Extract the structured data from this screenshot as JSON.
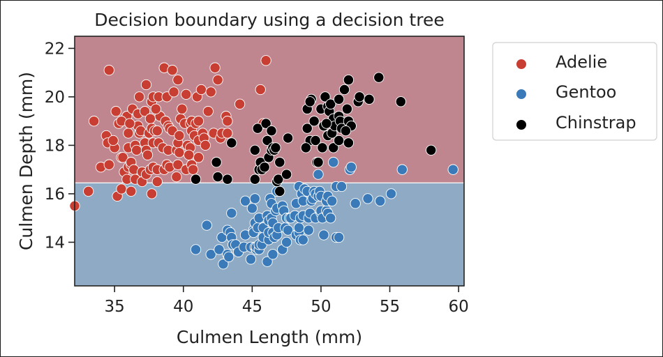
{
  "chart_data": {
    "type": "scatter",
    "title": "Decision boundary using a decision tree",
    "xlabel": "Culmen Length (mm)",
    "ylabel": "Culmen Depth (mm)",
    "xlim": [
      32.1,
      60.4
    ],
    "ylim": [
      12.2,
      22.5
    ],
    "x_ticks": [
      35,
      40,
      45,
      50,
      55,
      60
    ],
    "y_ticks": [
      14,
      16,
      18,
      20,
      22
    ],
    "grid": false,
    "legend_position": "outside-right",
    "decision_regions": [
      {
        "label": "Adelie",
        "y_min": 16.45,
        "y_max": 22.5,
        "color": "#c0868f"
      },
      {
        "label": "Gentoo",
        "y_min": 12.2,
        "y_max": 16.45,
        "color": "#8eaac4"
      }
    ],
    "series": [
      {
        "name": "Adelie",
        "color": "#c83e32",
        "points": [
          [
            32.1,
            15.5
          ],
          [
            33.1,
            16.1
          ],
          [
            33.5,
            19.0
          ],
          [
            34.0,
            17.1
          ],
          [
            34.4,
            18.4
          ],
          [
            34.5,
            18.1
          ],
          [
            34.6,
            21.1
          ],
          [
            34.6,
            17.2
          ],
          [
            35.0,
            17.9
          ],
          [
            35.1,
            19.4
          ],
          [
            35.2,
            15.9
          ],
          [
            35.3,
            18.9
          ],
          [
            35.5,
            16.2
          ],
          [
            35.5,
            17.5
          ],
          [
            35.6,
            17.5
          ],
          [
            35.7,
            16.9
          ],
          [
            35.9,
            16.6
          ],
          [
            35.9,
            19.2
          ],
          [
            36.0,
            17.1
          ],
          [
            36.0,
            17.9
          ],
          [
            36.0,
            18.5
          ],
          [
            36.2,
            16.1
          ],
          [
            36.2,
            17.2
          ],
          [
            36.2,
            17.3
          ],
          [
            36.3,
            19.5
          ],
          [
            36.4,
            17.0
          ],
          [
            36.5,
            16.6
          ],
          [
            36.5,
            18.0
          ],
          [
            36.6,
            17.8
          ],
          [
            36.7,
            18.8
          ],
          [
            36.7,
            19.3
          ],
          [
            36.8,
            18.5
          ],
          [
            36.9,
            18.6
          ],
          [
            37.0,
            16.5
          ],
          [
            37.0,
            16.9
          ],
          [
            37.2,
            18.1
          ],
          [
            37.2,
            19.4
          ],
          [
            37.3,
            16.8
          ],
          [
            37.3,
            17.8
          ],
          [
            37.3,
            20.5
          ],
          [
            37.5,
            18.5
          ],
          [
            37.6,
            17.0
          ],
          [
            37.6,
            19.1
          ],
          [
            37.7,
            16.0
          ],
          [
            37.7,
            18.7
          ],
          [
            37.7,
            19.8
          ],
          [
            37.8,
            17.1
          ],
          [
            37.8,
            18.1
          ],
          [
            37.8,
            20.0
          ],
          [
            37.9,
            18.6
          ],
          [
            38.1,
            16.5
          ],
          [
            38.1,
            17.0
          ],
          [
            38.1,
            18.6
          ],
          [
            38.2,
            18.1
          ],
          [
            38.2,
            20.0
          ],
          [
            38.3,
            19.2
          ],
          [
            38.5,
            17.9
          ],
          [
            38.6,
            17.0
          ],
          [
            38.6,
            21.2
          ],
          [
            38.7,
            19.0
          ],
          [
            38.8,
            17.2
          ],
          [
            38.8,
            20.0
          ],
          [
            38.9,
            17.8
          ],
          [
            38.9,
            18.8
          ],
          [
            39.0,
            17.1
          ],
          [
            39.0,
            18.7
          ],
          [
            39.2,
            18.6
          ],
          [
            39.2,
            21.1
          ],
          [
            39.5,
            16.7
          ],
          [
            39.5,
            17.8
          ],
          [
            39.6,
            17.2
          ],
          [
            39.6,
            18.1
          ],
          [
            39.6,
            20.7
          ],
          [
            39.7,
            17.7
          ],
          [
            39.7,
            18.4
          ],
          [
            39.8,
            19.1
          ],
          [
            40.1,
            18.9
          ],
          [
            40.2,
            17.0
          ],
          [
            40.2,
            20.1
          ],
          [
            40.3,
            18.0
          ],
          [
            40.5,
            17.9
          ],
          [
            40.5,
            18.9
          ],
          [
            40.6,
            17.2
          ],
          [
            40.6,
            18.6
          ],
          [
            40.6,
            19.0
          ],
          [
            40.7,
            17.0
          ],
          [
            40.8,
            18.4
          ],
          [
            40.9,
            16.6
          ],
          [
            40.9,
            18.9
          ],
          [
            41.0,
            20.0
          ],
          [
            41.1,
            17.5
          ],
          [
            41.1,
            18.2
          ],
          [
            41.1,
            19.0
          ],
          [
            41.3,
            20.3
          ],
          [
            41.4,
            18.5
          ],
          [
            41.5,
            18.3
          ],
          [
            41.6,
            18.0
          ],
          [
            41.8,
            19.4
          ],
          [
            42.0,
            20.2
          ],
          [
            42.2,
            18.5
          ],
          [
            42.3,
            21.2
          ],
          [
            42.5,
            20.7
          ],
          [
            42.7,
            18.3
          ],
          [
            42.8,
            18.5
          ],
          [
            43.1,
            19.2
          ],
          [
            43.2,
            18.5
          ],
          [
            43.2,
            19.0
          ],
          [
            44.1,
            19.7
          ],
          [
            45.6,
            20.3
          ],
          [
            45.8,
            18.9
          ],
          [
            46.0,
            21.5
          ],
          [
            36.8,
            20.0
          ],
          [
            35.5,
            19.0
          ],
          [
            39.9,
            19.5
          ],
          [
            38.0,
            19.5
          ],
          [
            36.1,
            18.9
          ],
          [
            37.4,
            17.6
          ],
          [
            39.3,
            20.2
          ],
          [
            34.9,
            18.2
          ],
          [
            40.4,
            17.6
          ]
        ]
      },
      {
        "name": "Gentoo",
        "color": "#3a7ab8",
        "points": [
          [
            40.9,
            13.7
          ],
          [
            41.7,
            14.7
          ],
          [
            42.0,
            13.5
          ],
          [
            42.6,
            13.7
          ],
          [
            42.8,
            14.2
          ],
          [
            42.9,
            13.1
          ],
          [
            43.2,
            13.5
          ],
          [
            43.2,
            14.5
          ],
          [
            43.3,
            13.4
          ],
          [
            43.4,
            14.4
          ],
          [
            43.5,
            14.2
          ],
          [
            43.5,
            15.2
          ],
          [
            43.6,
            13.9
          ],
          [
            43.8,
            13.9
          ],
          [
            44.0,
            13.6
          ],
          [
            44.4,
            13.8
          ],
          [
            44.5,
            14.3
          ],
          [
            44.5,
            15.7
          ],
          [
            44.9,
            13.3
          ],
          [
            44.9,
            13.8
          ],
          [
            45.0,
            15.4
          ],
          [
            45.1,
            14.5
          ],
          [
            45.1,
            14.4
          ],
          [
            45.2,
            13.8
          ],
          [
            45.2,
            14.8
          ],
          [
            45.2,
            15.8
          ],
          [
            45.3,
            13.7
          ],
          [
            45.3,
            13.8
          ],
          [
            45.4,
            14.6
          ],
          [
            45.5,
            13.7
          ],
          [
            45.5,
            13.9
          ],
          [
            45.5,
            15.0
          ],
          [
            45.7,
            13.9
          ],
          [
            45.8,
            14.2
          ],
          [
            45.8,
            14.6
          ],
          [
            46.1,
            13.2
          ],
          [
            46.1,
            15.1
          ],
          [
            46.2,
            14.1
          ],
          [
            46.2,
            14.4
          ],
          [
            46.2,
            14.9
          ],
          [
            46.3,
            15.8
          ],
          [
            46.4,
            15.0
          ],
          [
            46.4,
            15.6
          ],
          [
            46.5,
            13.5
          ],
          [
            46.5,
            14.4
          ],
          [
            46.5,
            14.8
          ],
          [
            46.6,
            14.2
          ],
          [
            46.7,
            15.3
          ],
          [
            46.8,
            14.3
          ],
          [
            46.8,
            15.4
          ],
          [
            46.8,
            16.1
          ],
          [
            46.9,
            14.6
          ],
          [
            47.2,
            13.7
          ],
          [
            47.2,
            15.5
          ],
          [
            47.3,
            15.3
          ],
          [
            47.4,
            14.6
          ],
          [
            47.5,
            14.0
          ],
          [
            47.5,
            15.0
          ],
          [
            47.6,
            14.5
          ],
          [
            47.7,
            15.0
          ],
          [
            47.8,
            15.0
          ],
          [
            48.1,
            15.1
          ],
          [
            48.2,
            14.3
          ],
          [
            48.2,
            15.6
          ],
          [
            48.4,
            14.4
          ],
          [
            48.4,
            14.6
          ],
          [
            48.4,
            16.3
          ],
          [
            48.5,
            14.1
          ],
          [
            48.5,
            15.0
          ],
          [
            48.6,
            16.0
          ],
          [
            48.7,
            14.1
          ],
          [
            48.7,
            15.1
          ],
          [
            48.7,
            15.7
          ],
          [
            48.8,
            16.2
          ],
          [
            49.0,
            16.1
          ],
          [
            49.1,
            14.5
          ],
          [
            49.1,
            15.0
          ],
          [
            49.2,
            15.2
          ],
          [
            49.3,
            15.7
          ],
          [
            49.4,
            15.8
          ],
          [
            49.5,
            16.1
          ],
          [
            49.6,
            15.0
          ],
          [
            49.6,
            16.0
          ],
          [
            49.8,
            15.9
          ],
          [
            49.8,
            16.8
          ],
          [
            49.9,
            16.1
          ],
          [
            50.0,
            15.2
          ],
          [
            50.0,
            15.3
          ],
          [
            50.0,
            15.9
          ],
          [
            50.1,
            15.0
          ],
          [
            50.2,
            14.3
          ],
          [
            50.4,
            15.3
          ],
          [
            50.4,
            15.7
          ],
          [
            50.5,
            15.2
          ],
          [
            50.5,
            15.9
          ],
          [
            50.7,
            15.0
          ],
          [
            50.8,
            15.7
          ],
          [
            50.9,
            17.3
          ],
          [
            51.1,
            14.2
          ],
          [
            51.1,
            16.3
          ],
          [
            51.3,
            14.2
          ],
          [
            51.5,
            16.3
          ],
          [
            52.1,
            17.0
          ],
          [
            52.2,
            17.1
          ],
          [
            52.5,
            15.6
          ],
          [
            53.4,
            15.8
          ],
          [
            54.3,
            15.7
          ],
          [
            55.1,
            16.0
          ],
          [
            55.9,
            17.0
          ],
          [
            59.6,
            17.0
          ]
        ]
      },
      {
        "name": "Chinstrap",
        "color": "#000000",
        "points": [
          [
            40.9,
            16.6
          ],
          [
            42.4,
            17.3
          ],
          [
            42.5,
            16.7
          ],
          [
            43.2,
            16.6
          ],
          [
            43.5,
            18.1
          ],
          [
            45.2,
            16.6
          ],
          [
            45.2,
            17.8
          ],
          [
            45.4,
            18.7
          ],
          [
            45.5,
            17.0
          ],
          [
            45.6,
            17.3
          ],
          [
            45.7,
            17.0
          ],
          [
            45.9,
            17.1
          ],
          [
            46.0,
            18.9
          ],
          [
            46.1,
            18.2
          ],
          [
            46.2,
            17.5
          ],
          [
            46.4,
            17.8
          ],
          [
            46.4,
            18.6
          ],
          [
            46.5,
            17.9
          ],
          [
            46.6,
            17.8
          ],
          [
            46.7,
            17.9
          ],
          [
            46.8,
            16.5
          ],
          [
            46.9,
            16.6
          ],
          [
            47.0,
            17.3
          ],
          [
            47.5,
            16.8
          ],
          [
            47.6,
            18.3
          ],
          [
            49.0,
            19.5
          ],
          [
            49.2,
            18.2
          ],
          [
            49.3,
            19.9
          ],
          [
            49.5,
            19.0
          ],
          [
            49.6,
            18.2
          ],
          [
            49.7,
            17.3
          ],
          [
            49.8,
            17.3
          ],
          [
            50.0,
            19.5
          ],
          [
            50.1,
            17.9
          ],
          [
            50.2,
            18.8
          ],
          [
            50.3,
            20.0
          ],
          [
            50.5,
            18.4
          ],
          [
            50.5,
            19.6
          ],
          [
            50.6,
            19.4
          ],
          [
            50.7,
            19.7
          ],
          [
            50.8,
            18.5
          ],
          [
            50.8,
            19.0
          ],
          [
            50.9,
            17.9
          ],
          [
            50.9,
            19.1
          ],
          [
            51.0,
            18.8
          ],
          [
            51.3,
            18.2
          ],
          [
            51.3,
            19.2
          ],
          [
            51.3,
            19.9
          ],
          [
            51.4,
            19.0
          ],
          [
            51.5,
            18.7
          ],
          [
            51.7,
            20.3
          ],
          [
            51.9,
            19.5
          ],
          [
            52.0,
            18.1
          ],
          [
            52.0,
            19.0
          ],
          [
            52.0,
            20.7
          ],
          [
            52.2,
            18.8
          ],
          [
            52.7,
            19.8
          ],
          [
            52.8,
            20.0
          ],
          [
            53.5,
            19.9
          ],
          [
            54.2,
            20.8
          ],
          [
            55.8,
            19.8
          ],
          [
            58.0,
            17.8
          ],
          [
            47.0,
            16.1
          ],
          [
            49.0,
            18.7
          ],
          [
            50.4,
            18.9
          ],
          [
            49.2,
            19.8
          ],
          [
            51.8,
            18.6
          ],
          [
            48.9,
            17.9
          ]
        ]
      }
    ]
  }
}
